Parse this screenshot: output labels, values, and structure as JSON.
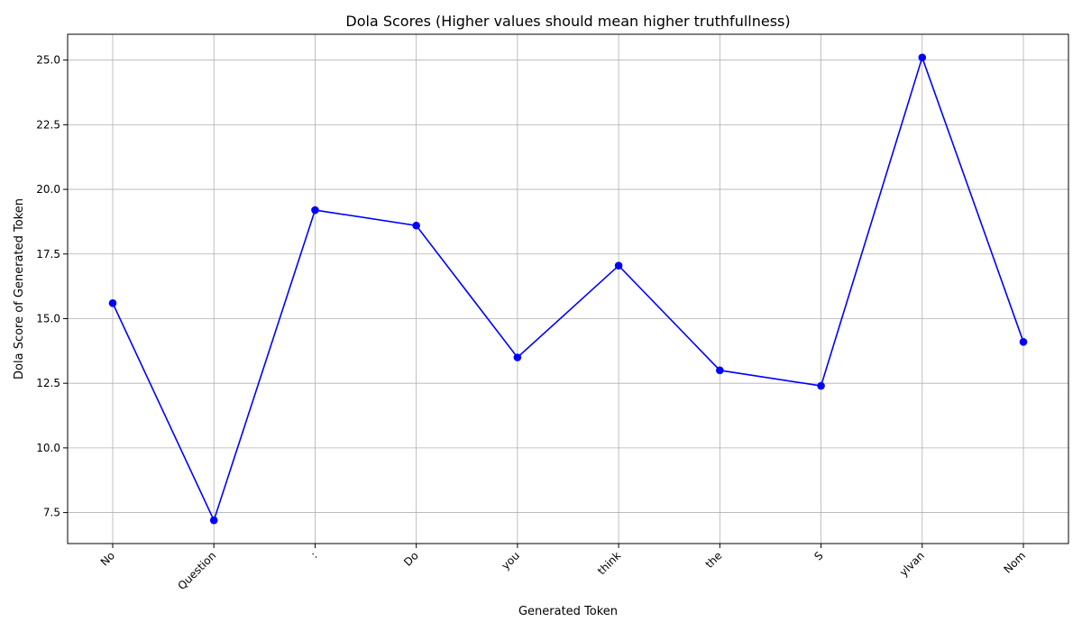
{
  "chart_data": {
    "type": "line",
    "title": "Dola Scores (Higher values should mean higher truthfullness)",
    "xlabel": "Generated Token",
    "ylabel": "Dola Score of Generated Token",
    "categories": [
      "No",
      "Question",
      ":",
      "Do",
      "you",
      "think",
      "the",
      "S",
      "ylvan",
      "Nom"
    ],
    "series": [
      {
        "values": [
          15.6,
          7.2,
          19.2,
          18.6,
          13.5,
          17.05,
          13.0,
          12.4,
          25.1,
          14.1
        ],
        "color": "#0000ff",
        "marker": "circle"
      }
    ],
    "ylim": [
      6.3,
      26.0
    ],
    "yticks": [
      7.5,
      10.0,
      12.5,
      15.0,
      17.5,
      20.0,
      22.5,
      25.0
    ],
    "ytick_labels": [
      "7.5",
      "10.0",
      "12.5",
      "15.0",
      "17.5",
      "20.0",
      "22.5",
      "25.0"
    ],
    "grid": true,
    "legend": "none"
  }
}
